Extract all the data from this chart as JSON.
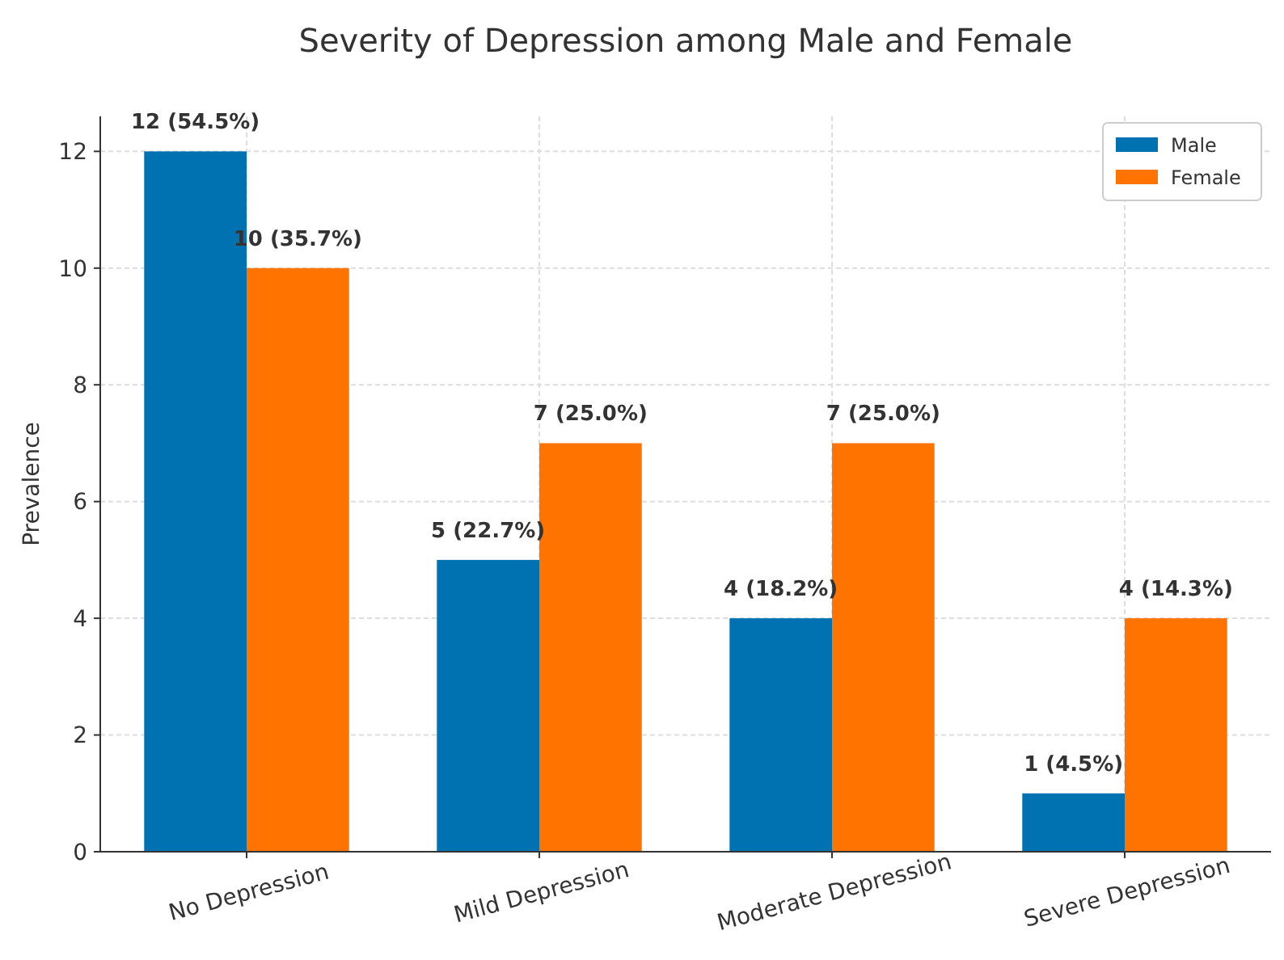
{
  "chart_data": {
    "type": "bar",
    "title": "Severity of Depression among Male and Female",
    "ylabel": "Prevalence",
    "categories": [
      "No Depression",
      "Mild Depression",
      "Moderate Depression",
      "Severe Depression"
    ],
    "series": [
      {
        "name": "Male",
        "color": "#0072b2",
        "values": [
          12,
          5,
          4,
          1
        ],
        "value_labels": [
          "12 (54.5%)",
          "5 (22.7%)",
          "4 (18.2%)",
          "1 (4.5%)"
        ]
      },
      {
        "name": "Female",
        "color": "#ff7300",
        "values": [
          10,
          7,
          7,
          4
        ],
        "value_labels": [
          "10 (35.7%)",
          "7 (25.0%)",
          "7 (25.0%)",
          "4 (14.3%)"
        ]
      }
    ],
    "ylim": [
      0,
      12.6
    ],
    "yticks": [
      0,
      2,
      4,
      6,
      8,
      10,
      12
    ],
    "grid": true,
    "legend": "top right"
  }
}
